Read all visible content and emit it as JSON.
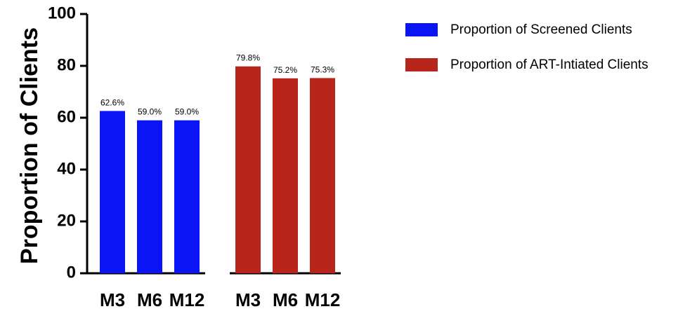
{
  "chart_data": {
    "type": "bar",
    "ylabel": "Proportion of Clients",
    "xlabel": "",
    "ylim": [
      0,
      100
    ],
    "yticks": [
      0,
      20,
      40,
      60,
      80,
      100
    ],
    "grid": false,
    "legend_position": "top-right",
    "series": [
      {
        "name": "Proportion of Screened Clients",
        "color": "#0a14f5",
        "categories": [
          "M3",
          "M6",
          "M12"
        ],
        "values": [
          62.6,
          59.0,
          59.0
        ],
        "labels": [
          "62.6%",
          "59.0%",
          "59.0%"
        ]
      },
      {
        "name": "Proportion of ART-Intiated Clients",
        "color": "#b8251a",
        "categories": [
          "M3",
          "M6",
          "M12"
        ],
        "values": [
          79.8,
          75.2,
          75.3
        ],
        "labels": [
          "79.8%",
          "75.2%",
          "75.3%"
        ]
      }
    ]
  }
}
